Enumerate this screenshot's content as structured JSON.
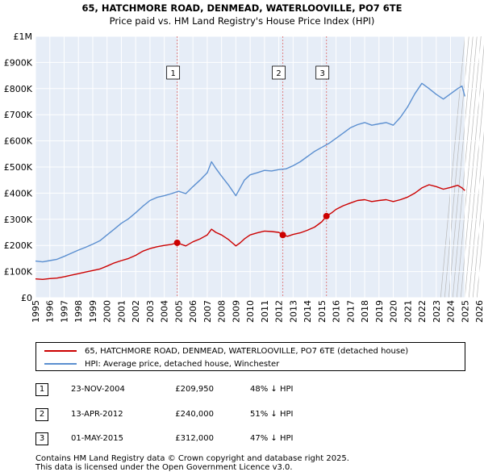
{
  "header": {
    "title": "65, HATCHMORE ROAD, DENMEAD, WATERLOOVILLE, PO7 6TE",
    "subtitle": "Price paid vs. HM Land Registry's House Price Index (HPI)"
  },
  "chart_data": {
    "type": "line",
    "title": "65, HATCHMORE ROAD, DENMEAD, WATERLOOVILLE, PO7 6TE",
    "subtitle": "Price paid vs. HM Land Registry's House Price Index (HPI)",
    "xlim": [
      1995,
      2026
    ],
    "ylim": [
      0,
      1000000
    ],
    "x_ticks": [
      "1995",
      "1996",
      "1997",
      "1998",
      "1999",
      "2000",
      "2001",
      "2002",
      "2003",
      "2004",
      "2005",
      "2006",
      "2007",
      "2008",
      "2009",
      "2010",
      "2011",
      "2012",
      "2013",
      "2014",
      "2015",
      "2016",
      "2017",
      "2018",
      "2019",
      "2020",
      "2021",
      "2022",
      "2023",
      "2024",
      "2025",
      "2026"
    ],
    "y_ticks": [
      {
        "value": 0,
        "label": "£0"
      },
      {
        "value": 100000,
        "label": "£100K"
      },
      {
        "value": 200000,
        "label": "£200K"
      },
      {
        "value": 300000,
        "label": "£300K"
      },
      {
        "value": 400000,
        "label": "£400K"
      },
      {
        "value": 500000,
        "label": "£500K"
      },
      {
        "value": 600000,
        "label": "£600K"
      },
      {
        "value": 700000,
        "label": "£700K"
      },
      {
        "value": 800000,
        "label": "£800K"
      },
      {
        "value": 900000,
        "label": "£900K"
      },
      {
        "value": 1000000,
        "label": "£1M"
      }
    ],
    "series": [
      {
        "name": "65, HATCHMORE ROAD, DENMEAD, WATERLOOVILLE, PO7 6TE (detached house)",
        "color": "#cc0000",
        "x": [
          1995.0,
          1995.5,
          1996.0,
          1996.5,
          1997.0,
          1997.5,
          1998.0,
          1998.5,
          1999.0,
          1999.5,
          2000.0,
          2000.5,
          2001.0,
          2001.5,
          2002.0,
          2002.5,
          2003.0,
          2003.5,
          2004.0,
          2004.5,
          2004.9,
          2005.5,
          2006.0,
          2006.5,
          2007.0,
          2007.3,
          2007.6,
          2008.0,
          2008.5,
          2009.0,
          2009.3,
          2009.6,
          2010.0,
          2010.5,
          2011.0,
          2011.5,
          2012.0,
          2012.28,
          2012.6,
          2013.0,
          2013.5,
          2014.0,
          2014.5,
          2015.0,
          2015.33,
          2015.7,
          2016.0,
          2016.5,
          2017.0,
          2017.5,
          2018.0,
          2018.5,
          2019.0,
          2019.5,
          2020.0,
          2020.5,
          2021.0,
          2021.5,
          2022.0,
          2022.5,
          2023.0,
          2023.5,
          2024.0,
          2024.5,
          2024.8,
          2025.0
        ],
        "values": [
          72000,
          70000,
          73000,
          75000,
          80000,
          86000,
          92000,
          98000,
          104000,
          110000,
          121000,
          133000,
          142000,
          150000,
          162000,
          178000,
          188000,
          195000,
          200000,
          204000,
          209950,
          198000,
          214000,
          225000,
          240000,
          262000,
          250000,
          240000,
          222000,
          198000,
          210000,
          225000,
          240000,
          248000,
          255000,
          253000,
          250000,
          240000,
          235000,
          242000,
          248000,
          258000,
          270000,
          290000,
          312000,
          325000,
          338000,
          352000,
          362000,
          372000,
          375000,
          368000,
          372000,
          375000,
          368000,
          375000,
          385000,
          400000,
          420000,
          432000,
          425000,
          415000,
          422000,
          430000,
          420000,
          410000
        ]
      },
      {
        "name": "HPI: Average price, detached house, Winchester",
        "color": "#5b8fd0",
        "x": [
          1995.0,
          1995.5,
          1996.0,
          1996.5,
          1997.0,
          1997.5,
          1998.0,
          1998.5,
          1999.0,
          1999.5,
          2000.0,
          2000.5,
          2001.0,
          2001.5,
          2002.0,
          2002.5,
          2003.0,
          2003.5,
          2004.0,
          2004.5,
          2005.0,
          2005.5,
          2006.0,
          2006.5,
          2007.0,
          2007.3,
          2007.6,
          2008.0,
          2008.5,
          2009.0,
          2009.3,
          2009.6,
          2010.0,
          2010.5,
          2011.0,
          2011.5,
          2012.0,
          2012.5,
          2013.0,
          2013.5,
          2014.0,
          2014.5,
          2015.0,
          2015.5,
          2016.0,
          2016.5,
          2017.0,
          2017.5,
          2018.0,
          2018.5,
          2019.0,
          2019.5,
          2020.0,
          2020.5,
          2021.0,
          2021.5,
          2022.0,
          2022.5,
          2023.0,
          2023.5,
          2024.0,
          2024.5,
          2024.8,
          2025.0
        ],
        "values": [
          140000,
          137000,
          142000,
          147000,
          158000,
          170000,
          182000,
          193000,
          205000,
          218000,
          240000,
          262000,
          285000,
          302000,
          325000,
          350000,
          372000,
          384000,
          390000,
          398000,
          407000,
          398000,
          425000,
          450000,
          478000,
          520000,
          495000,
          465000,
          430000,
          390000,
          420000,
          450000,
          470000,
          478000,
          487000,
          485000,
          490000,
          493000,
          505000,
          520000,
          540000,
          560000,
          575000,
          590000,
          610000,
          630000,
          650000,
          662000,
          670000,
          660000,
          665000,
          670000,
          660000,
          690000,
          730000,
          780000,
          820000,
          800000,
          778000,
          760000,
          780000,
          800000,
          810000,
          770000
        ]
      }
    ],
    "annotations": [
      {
        "label": "1",
        "x": 2004.9,
        "value": 209950
      },
      {
        "label": "2",
        "x": 2012.28,
        "value": 240000
      },
      {
        "label": "3",
        "x": 2015.33,
        "value": 312000
      }
    ],
    "legend": "bottom"
  },
  "legend": {
    "entries": [
      {
        "label": "65, HATCHMORE ROAD, DENMEAD, WATERLOOVILLE, PO7 6TE (detached house)",
        "color": "#cc0000"
      },
      {
        "label": "HPI: Average price, detached house, Winchester",
        "color": "#5b8fd0"
      }
    ]
  },
  "transactions": [
    {
      "num": "1",
      "date": "23-NOV-2004",
      "price": "£209,950",
      "hpi": "48% ↓ HPI"
    },
    {
      "num": "2",
      "date": "13-APR-2012",
      "price": "£240,000",
      "hpi": "51% ↓ HPI"
    },
    {
      "num": "3",
      "date": "01-MAY-2015",
      "price": "£312,000",
      "hpi": "47% ↓ HPI"
    }
  ],
  "footer": {
    "line1": "Contains HM Land Registry data © Crown copyright and database right 2025.",
    "line2": "This data is licensed under the Open Government Licence v3.0."
  }
}
